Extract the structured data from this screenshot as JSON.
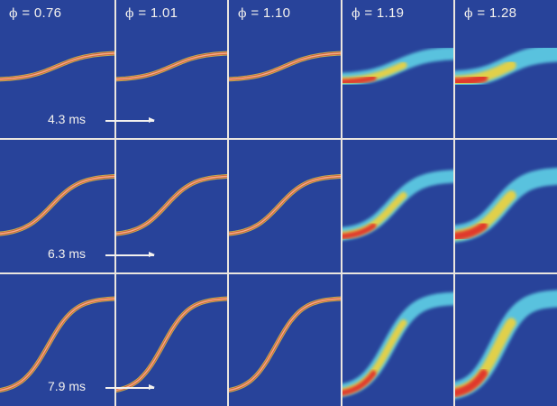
{
  "figure": {
    "phi_symbol": "ϕ",
    "columns": [
      {
        "phi": "= 0.76",
        "intensity": 0.0
      },
      {
        "phi": "= 1.01",
        "intensity": 0.0
      },
      {
        "phi": "= 1.10",
        "intensity": 0.0
      },
      {
        "phi": "= 1.19",
        "intensity": 0.55
      },
      {
        "phi": "= 1.28",
        "intensity": 1.0
      }
    ],
    "rows": [
      {
        "time": "4.3 ms"
      },
      {
        "time": "6.3 ms"
      },
      {
        "time": "7.9 ms"
      }
    ],
    "colors": {
      "background": "#28439a",
      "divider": "#ebe6df",
      "thin_front_core": "#f2b08a",
      "front_red": "#e0302a",
      "front_yellow": "#f0d23a",
      "front_cyan": "#5fd0e6",
      "label_text": "#f3f1ee"
    }
  }
}
